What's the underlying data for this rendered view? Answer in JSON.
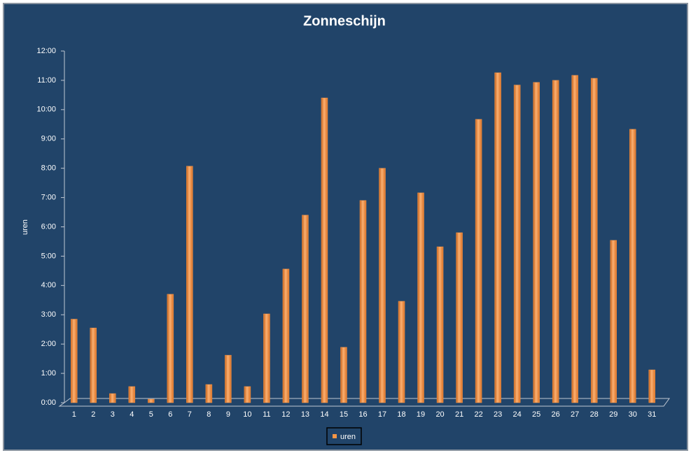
{
  "chart_data": {
    "type": "bar",
    "title": "Zonneschijn",
    "y_label": "uren",
    "categories": [
      "1",
      "2",
      "3",
      "4",
      "5",
      "6",
      "7",
      "8",
      "9",
      "10",
      "11",
      "12",
      "13",
      "14",
      "15",
      "16",
      "17",
      "18",
      "19",
      "20",
      "21",
      "22",
      "23",
      "24",
      "25",
      "26",
      "27",
      "28",
      "29",
      "30",
      "31"
    ],
    "series": [
      {
        "name": "uren",
        "color": "#f79646",
        "values": [
          2.85,
          2.55,
          0.31,
          0.55,
          0.12,
          3.7,
          8.07,
          0.62,
          1.62,
          0.55,
          3.03,
          4.56,
          6.4,
          10.4,
          1.89,
          6.9,
          8.0,
          3.46,
          7.16,
          5.32,
          5.8,
          9.67,
          11.26,
          10.84,
          10.93,
          11.0,
          11.17,
          11.07,
          5.54,
          9.33,
          1.12
        ]
      }
    ],
    "ylim": [
      0,
      12
    ],
    "yticks": [
      {
        "value": 0,
        "label": "0:00"
      },
      {
        "value": 1,
        "label": "1:00"
      },
      {
        "value": 2,
        "label": "2:00"
      },
      {
        "value": 3,
        "label": "3:00"
      },
      {
        "value": 4,
        "label": "4:00"
      },
      {
        "value": 5,
        "label": "5:00"
      },
      {
        "value": 6,
        "label": "6:00"
      },
      {
        "value": 7,
        "label": "7:00"
      },
      {
        "value": 8,
        "label": "8:00"
      },
      {
        "value": 9,
        "label": "9:00"
      },
      {
        "value": 10,
        "label": "10:00"
      },
      {
        "value": 11,
        "label": "11:00"
      },
      {
        "value": 12,
        "label": "12:00"
      }
    ],
    "grid": false,
    "legend": "bottom"
  }
}
